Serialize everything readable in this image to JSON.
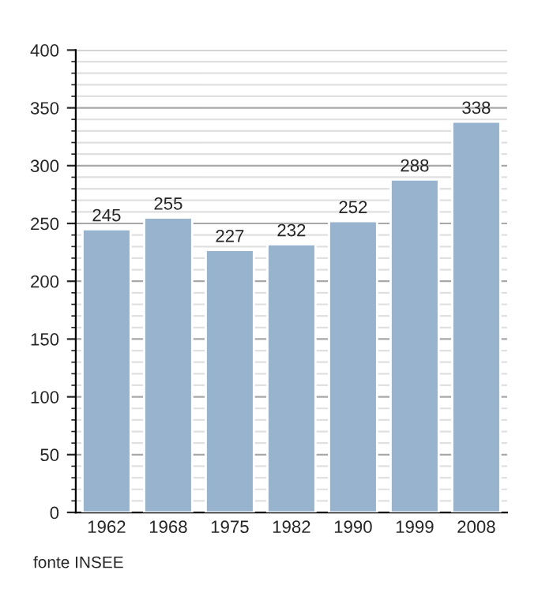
{
  "chart_data": {
    "type": "bar",
    "categories": [
      "1962",
      "1968",
      "1975",
      "1982",
      "1990",
      "1999",
      "2008"
    ],
    "values": [
      245,
      255,
      227,
      232,
      252,
      288,
      338
    ],
    "color": "#98b3cd",
    "ylim": [
      0,
      400
    ],
    "yticks": [
      0,
      50,
      100,
      150,
      200,
      250,
      300,
      350,
      400
    ],
    "grid": "y",
    "data_labels": true,
    "annotations": [
      "fonte INSEE"
    ]
  }
}
